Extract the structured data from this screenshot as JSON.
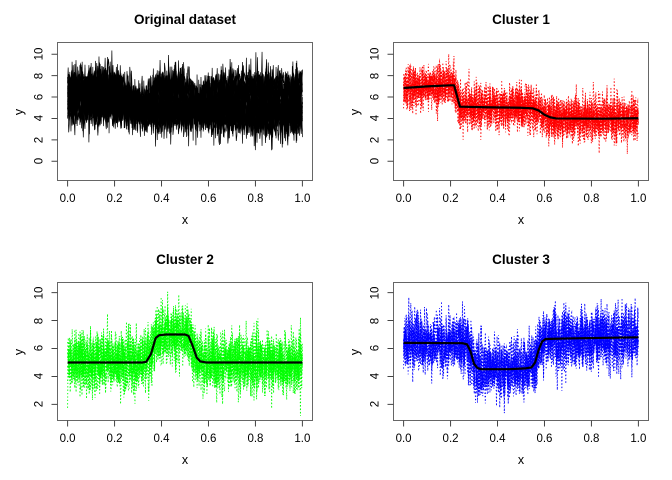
{
  "figure": {
    "background": "#ffffff",
    "frame_color": "#666666",
    "tick_color": "#444444",
    "text_color": "#000000"
  },
  "mean_curves": {
    "cluster1": [
      [
        0,
        6.85
      ],
      [
        0.1,
        7.0
      ],
      [
        0.2,
        7.1
      ],
      [
        0.215,
        7.1
      ],
      [
        0.24,
        5.1
      ],
      [
        0.35,
        5.05
      ],
      [
        0.5,
        5.0
      ],
      [
        0.55,
        4.95
      ],
      [
        0.575,
        4.75
      ],
      [
        0.6,
        4.35
      ],
      [
        0.625,
        4.1
      ],
      [
        0.65,
        4.0
      ],
      [
        0.85,
        3.98
      ],
      [
        1,
        4.02
      ]
    ],
    "cluster2": [
      [
        0,
        5.0
      ],
      [
        0.32,
        5.0
      ],
      [
        0.335,
        5.05
      ],
      [
        0.355,
        5.6
      ],
      [
        0.375,
        6.75
      ],
      [
        0.39,
        6.95
      ],
      [
        0.42,
        7.0
      ],
      [
        0.5,
        7.0
      ],
      [
        0.515,
        6.9
      ],
      [
        0.53,
        6.3
      ],
      [
        0.55,
        5.35
      ],
      [
        0.565,
        5.08
      ],
      [
        0.59,
        5.0
      ],
      [
        1,
        5.0
      ]
    ],
    "cluster3": [
      [
        0,
        6.4
      ],
      [
        0.25,
        6.38
      ],
      [
        0.27,
        6.3
      ],
      [
        0.285,
        5.8
      ],
      [
        0.3,
        4.9
      ],
      [
        0.315,
        4.6
      ],
      [
        0.33,
        4.52
      ],
      [
        0.45,
        4.52
      ],
      [
        0.52,
        4.58
      ],
      [
        0.545,
        4.65
      ],
      [
        0.56,
        5.0
      ],
      [
        0.575,
        5.9
      ],
      [
        0.59,
        6.5
      ],
      [
        0.605,
        6.68
      ],
      [
        0.7,
        6.72
      ],
      [
        1,
        6.8
      ]
    ]
  },
  "chart_data": [
    {
      "type": "line",
      "title": "Original dataset",
      "xlabel": "x",
      "ylabel": "y",
      "xlim": [
        -0.043,
        1.043
      ],
      "ylim": [
        -1.8,
        11.1
      ],
      "xtick_labels": [
        "0.0",
        "0.2",
        "0.4",
        "0.6",
        "0.8",
        "1.0"
      ],
      "xtick_values": [
        0,
        0.2,
        0.4,
        0.6,
        0.8,
        1
      ],
      "ytick_labels": [
        "0",
        "2",
        "4",
        "6",
        "8",
        "10"
      ],
      "ytick_values": [
        0,
        2,
        4,
        6,
        8,
        10
      ],
      "grid": false,
      "legend": null,
      "mean_keys": [
        "cluster1",
        "cluster2",
        "cluster3"
      ],
      "show_mean_curve": false,
      "noise_series": {
        "color": "#000000",
        "dash": [],
        "line_width": 0.7,
        "sd": 0.95,
        "series_per_mean": 8,
        "points": 420,
        "seed": 101
      },
      "mean_style": {
        "color": "#000000",
        "line_width": 2.2
      }
    },
    {
      "type": "line",
      "title": "Cluster 1",
      "xlabel": "x",
      "ylabel": "y",
      "xlim": [
        -0.043,
        1.043
      ],
      "ylim": [
        -1.8,
        11.1
      ],
      "xtick_labels": [
        "0.0",
        "0.2",
        "0.4",
        "0.6",
        "0.8",
        "1.0"
      ],
      "xtick_values": [
        0,
        0.2,
        0.4,
        0.6,
        0.8,
        1
      ],
      "ytick_labels": [
        "0",
        "2",
        "4",
        "6",
        "8",
        "10"
      ],
      "ytick_values": [
        0,
        2,
        4,
        6,
        8,
        10
      ],
      "grid": false,
      "legend": null,
      "mean_keys": [
        "cluster1"
      ],
      "show_mean_curve": true,
      "noise_series": {
        "color": "#FF0000",
        "dash": [
          1.3,
          2.1
        ],
        "line_width": 0.9,
        "sd": 1.0,
        "series_per_mean": 10,
        "points": 360,
        "seed": 202
      },
      "mean_style": {
        "color": "#000000",
        "line_width": 2.2
      }
    },
    {
      "type": "line",
      "title": "Cluster 2",
      "xlabel": "x",
      "ylabel": "y",
      "xlim": [
        -0.043,
        1.043
      ],
      "ylim": [
        0.85,
        10.72
      ],
      "xtick_labels": [
        "0.0",
        "0.2",
        "0.4",
        "0.6",
        "0.8",
        "1.0"
      ],
      "xtick_values": [
        0,
        0.2,
        0.4,
        0.6,
        0.8,
        1
      ],
      "ytick_labels": [
        "2",
        "4",
        "6",
        "8",
        "10"
      ],
      "ytick_values": [
        2,
        4,
        6,
        8,
        10
      ],
      "grid": false,
      "legend": null,
      "mean_keys": [
        "cluster2"
      ],
      "show_mean_curve": true,
      "noise_series": {
        "color": "#00FF00",
        "dash": [
          1.3,
          2.1
        ],
        "line_width": 0.9,
        "sd": 1.0,
        "series_per_mean": 10,
        "points": 360,
        "seed": 303
      },
      "mean_style": {
        "color": "#000000",
        "line_width": 2.2
      }
    },
    {
      "type": "line",
      "title": "Cluster 3",
      "xlabel": "x",
      "ylabel": "y",
      "xlim": [
        -0.043,
        1.043
      ],
      "ylim": [
        0.85,
        10.72
      ],
      "xtick_labels": [
        "0.0",
        "0.2",
        "0.4",
        "0.6",
        "0.8",
        "1.0"
      ],
      "xtick_values": [
        0,
        0.2,
        0.4,
        0.6,
        0.8,
        1
      ],
      "ytick_labels": [
        "2",
        "4",
        "6",
        "8",
        "10"
      ],
      "ytick_values": [
        2,
        4,
        6,
        8,
        10
      ],
      "grid": false,
      "legend": null,
      "mean_keys": [
        "cluster3"
      ],
      "show_mean_curve": true,
      "noise_series": {
        "color": "#0000FF",
        "dash": [
          1.3,
          2.1
        ],
        "line_width": 0.9,
        "sd": 1.0,
        "series_per_mean": 10,
        "points": 360,
        "seed": 404
      },
      "mean_style": {
        "color": "#000000",
        "line_width": 2.2
      }
    }
  ]
}
